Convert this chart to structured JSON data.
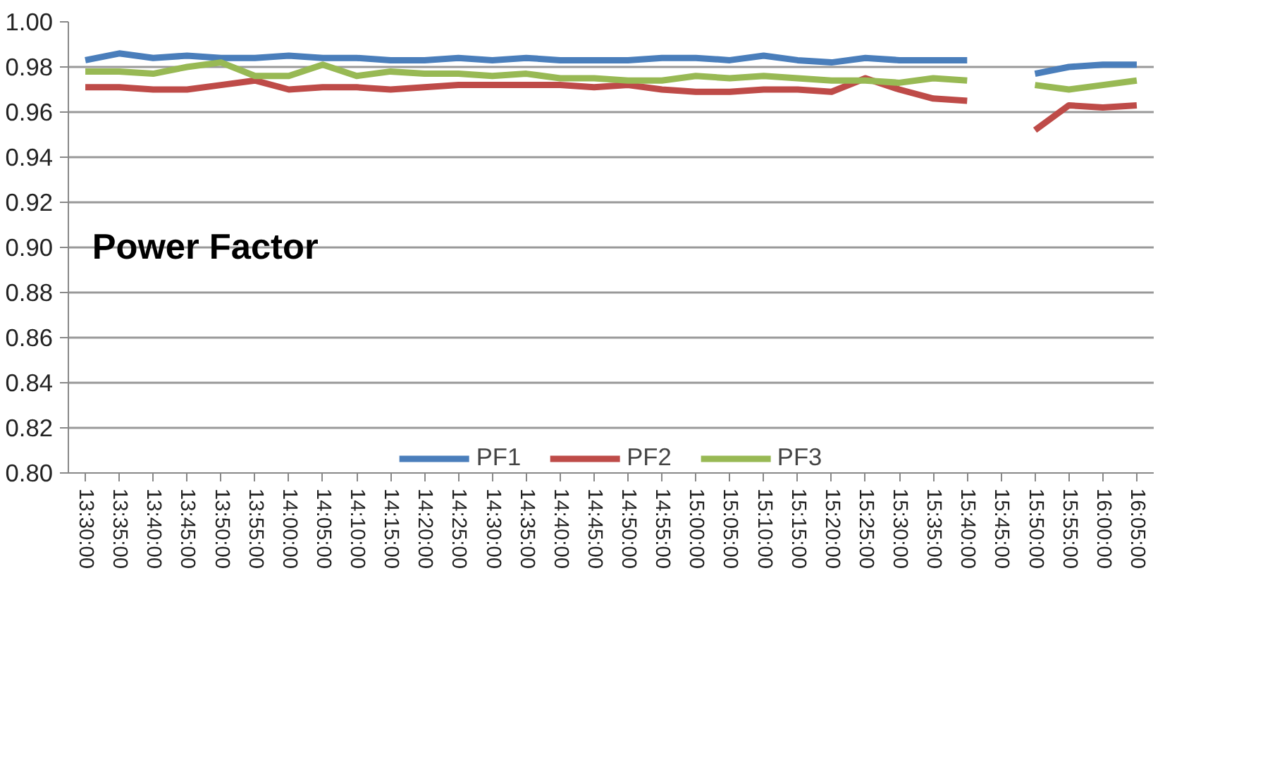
{
  "chart_data": {
    "type": "line",
    "title": "Power Factor",
    "categories": [
      "13:30:00",
      "13:35:00",
      "13:40:00",
      "13:45:00",
      "13:50:00",
      "13:55:00",
      "14:00:00",
      "14:05:00",
      "14:10:00",
      "14:15:00",
      "14:20:00",
      "14:25:00",
      "14:30:00",
      "14:35:00",
      "14:40:00",
      "14:45:00",
      "14:50:00",
      "14:55:00",
      "15:00:00",
      "15:05:00",
      "15:10:00",
      "15:15:00",
      "15:20:00",
      "15:25:00",
      "15:30:00",
      "15:35:00",
      "15:40:00",
      "15:45:00",
      "15:50:00",
      "15:55:00",
      "16:00:00",
      "16:05:00"
    ],
    "series": [
      {
        "name": "PF1",
        "color": "#4a7ebb",
        "values": [
          0.983,
          0.986,
          0.984,
          0.985,
          0.984,
          0.984,
          0.985,
          0.984,
          0.984,
          0.983,
          0.983,
          0.984,
          0.983,
          0.984,
          0.983,
          0.983,
          0.983,
          0.984,
          0.984,
          0.983,
          0.985,
          0.983,
          0.982,
          0.984,
          0.983,
          0.983,
          0.983,
          null,
          0.977,
          0.98,
          0.981,
          0.981
        ]
      },
      {
        "name": "PF2",
        "color": "#be4b48",
        "values": [
          0.971,
          0.971,
          0.97,
          0.97,
          0.972,
          0.974,
          0.97,
          0.971,
          0.971,
          0.97,
          0.971,
          0.972,
          0.972,
          0.972,
          0.972,
          0.971,
          0.972,
          0.97,
          0.969,
          0.969,
          0.97,
          0.97,
          0.969,
          0.975,
          0.97,
          0.966,
          0.965,
          null,
          0.952,
          0.963,
          0.962,
          0.963
        ]
      },
      {
        "name": "PF3",
        "color": "#98b954",
        "values": [
          0.978,
          0.978,
          0.977,
          0.98,
          0.982,
          0.976,
          0.976,
          0.981,
          0.976,
          0.978,
          0.977,
          0.977,
          0.976,
          0.977,
          0.975,
          0.975,
          0.974,
          0.974,
          0.976,
          0.975,
          0.976,
          0.975,
          0.974,
          0.974,
          0.973,
          0.975,
          0.974,
          null,
          0.972,
          0.97,
          0.972,
          0.974
        ]
      }
    ],
    "ylim": [
      0.8,
      1.0
    ],
    "yticks": [
      {
        "value": 0.8,
        "label": "0.80"
      },
      {
        "value": 0.82,
        "label": "0.82"
      },
      {
        "value": 0.84,
        "label": "0.84"
      },
      {
        "value": 0.86,
        "label": "0.86"
      },
      {
        "value": 0.88,
        "label": "0.88"
      },
      {
        "value": 0.9,
        "label": "0.90"
      },
      {
        "value": 0.92,
        "label": "0.92"
      },
      {
        "value": 0.94,
        "label": "0.94"
      },
      {
        "value": 0.96,
        "label": "0.96"
      },
      {
        "value": 0.98,
        "label": "0.98"
      },
      {
        "value": 1.0,
        "label": "1.00"
      }
    ],
    "grid": "y",
    "legend": "bottom",
    "marker": "none",
    "line_style": "solid"
  }
}
